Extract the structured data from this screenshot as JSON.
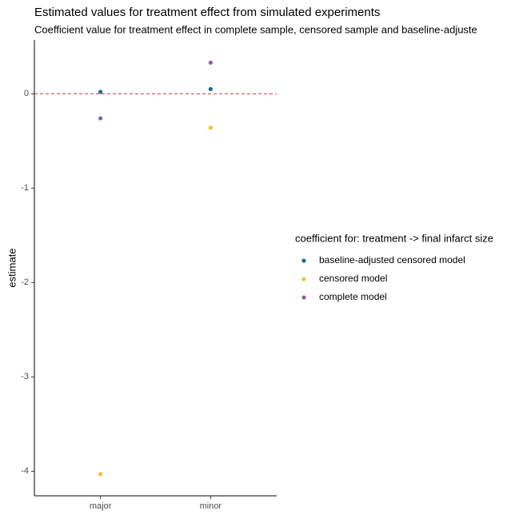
{
  "chart_data": {
    "type": "scatter",
    "title": "Estimated values for treatment effect from simulated experiments",
    "subtitle": "Coefficient value for treatment effect in complete sample, censored sample and baseline-adjuste",
    "y_label": "estimate",
    "legend_title": "coefficient for: treatment -> final infarct size",
    "legend_position": "right",
    "categories": [
      "major",
      "minor"
    ],
    "series": [
      {
        "name": "baseline-adjusted censored model",
        "color": "#1b6b93",
        "values": [
          0.02,
          0.05
        ]
      },
      {
        "name": "censored model",
        "color": "#f4c033",
        "values": [
          -4.03,
          -0.36
        ]
      },
      {
        "name": "complete model",
        "color": "#8e5f99",
        "values": [
          -0.26,
          0.33
        ]
      }
    ],
    "reference_line": {
      "value": 0,
      "color": "#c0392b"
    },
    "ylim": [
      -4.26,
      0.57
    ],
    "yticks": [
      -4,
      -3,
      -2,
      -1,
      0
    ],
    "grid": false
  }
}
